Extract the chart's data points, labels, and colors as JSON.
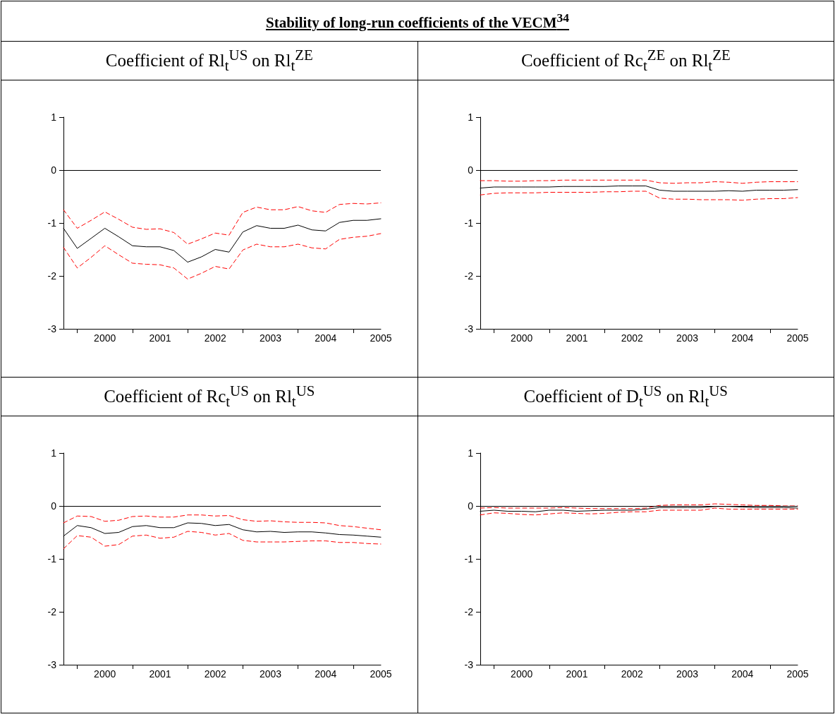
{
  "chart_data": [
    {
      "type": "line",
      "title": "Coefficient of Rl$_{t}$$^{US}$ on Rl$_{t}$$^{ZE}$",
      "annotations": [
        "Stability of long-run coefficients of the VECM$^{34}$"
      ],
      "x": [
        1999.75,
        2000,
        2000.25,
        2000.5,
        2000.75,
        2001,
        2001.25,
        2001.5,
        2001.75,
        2002,
        2002.25,
        2002.5,
        2002.75,
        2003,
        2003.25,
        2003.5,
        2003.75,
        2004,
        2004.25,
        2004.5,
        2004.75,
        2005,
        2005.25,
        2005.5
      ],
      "xlim": [
        1999.75,
        2005.5
      ],
      "xticks": [
        {
          "value": 2000,
          "label": null
        },
        {
          "value": 2000.5,
          "label": "2000"
        },
        {
          "value": 2001,
          "label": null
        },
        {
          "value": 2001.5,
          "label": "2001"
        },
        {
          "value": 2002,
          "label": null
        },
        {
          "value": 2002.5,
          "label": "2002"
        },
        {
          "value": 2003,
          "label": null
        },
        {
          "value": 2003.5,
          "label": "2003"
        },
        {
          "value": 2004,
          "label": null
        },
        {
          "value": 2004.5,
          "label": "2004"
        },
        {
          "value": 2005,
          "label": null
        },
        {
          "value": 2005.5,
          "label": "2005"
        }
      ],
      "ylim": [
        -3,
        1
      ],
      "yticks": [
        -3,
        -2,
        -1,
        0,
        1
      ],
      "marker": "none",
      "ref_lines": [
        {
          "axis": "y",
          "value": 0,
          "color": "#000000"
        }
      ],
      "series": [
        {
          "color": "#000000",
          "line_style": "solid",
          "values": [
            -1.1,
            -1.48,
            -1.29,
            -1.1,
            -1.26,
            -1.43,
            -1.45,
            -1.45,
            -1.52,
            -1.74,
            -1.64,
            -1.5,
            -1.55,
            -1.17,
            -1.05,
            -1.1,
            -1.1,
            -1.04,
            -1.13,
            -1.15,
            -0.99,
            -0.95,
            -0.95,
            -0.92
          ]
        },
        {
          "color": "#ff0000",
          "line_style": "dashed",
          "values": [
            -0.75,
            -1.1,
            -0.95,
            -0.79,
            -0.93,
            -1.08,
            -1.12,
            -1.11,
            -1.18,
            -1.4,
            -1.3,
            -1.19,
            -1.23,
            -0.8,
            -0.7,
            -0.75,
            -0.75,
            -0.69,
            -0.77,
            -0.8,
            -0.65,
            -0.63,
            -0.64,
            -0.62
          ]
        },
        {
          "color": "#ff0000",
          "line_style": "dashed",
          "values": [
            -1.46,
            -1.85,
            -1.65,
            -1.43,
            -1.6,
            -1.76,
            -1.78,
            -1.79,
            -1.85,
            -2.06,
            -1.95,
            -1.82,
            -1.87,
            -1.51,
            -1.4,
            -1.45,
            -1.45,
            -1.4,
            -1.47,
            -1.49,
            -1.31,
            -1.27,
            -1.25,
            -1.2
          ]
        }
      ]
    },
    {
      "type": "line",
      "title": "Coefficient of Rc$_{t}$$^{ZE}$ on Rl$_{t}$$^{ZE}$",
      "x": [
        1999.75,
        2000,
        2000.25,
        2000.5,
        2000.75,
        2001,
        2001.25,
        2001.5,
        2001.75,
        2002,
        2002.25,
        2002.5,
        2002.75,
        2003,
        2003.25,
        2003.5,
        2003.75,
        2004,
        2004.25,
        2004.5,
        2004.75,
        2005,
        2005.25,
        2005.5
      ],
      "xlim": [
        1999.75,
        2005.5
      ],
      "xticks": [
        {
          "value": 2000,
          "label": null
        },
        {
          "value": 2000.5,
          "label": "2000"
        },
        {
          "value": 2001,
          "label": null
        },
        {
          "value": 2001.5,
          "label": "2001"
        },
        {
          "value": 2002,
          "label": null
        },
        {
          "value": 2002.5,
          "label": "2002"
        },
        {
          "value": 2003,
          "label": null
        },
        {
          "value": 2003.5,
          "label": "2003"
        },
        {
          "value": 2004,
          "label": null
        },
        {
          "value": 2004.5,
          "label": "2004"
        },
        {
          "value": 2005,
          "label": null
        },
        {
          "value": 2005.5,
          "label": "2005"
        }
      ],
      "ylim": [
        -3,
        1
      ],
      "yticks": [
        -3,
        -2,
        -1,
        0,
        1
      ],
      "marker": "none",
      "ref_lines": [
        {
          "axis": "y",
          "value": 0,
          "color": "#000000"
        }
      ],
      "series": [
        {
          "color": "#000000",
          "line_style": "solid",
          "values": [
            -0.34,
            -0.32,
            -0.32,
            -0.32,
            -0.32,
            -0.32,
            -0.31,
            -0.31,
            -0.31,
            -0.31,
            -0.3,
            -0.3,
            -0.3,
            -0.38,
            -0.4,
            -0.4,
            -0.4,
            -0.4,
            -0.39,
            -0.4,
            -0.38,
            -0.38,
            -0.38,
            -0.37
          ]
        },
        {
          "color": "#ff0000",
          "line_style": "dashed",
          "values": [
            -0.2,
            -0.2,
            -0.21,
            -0.21,
            -0.2,
            -0.2,
            -0.19,
            -0.19,
            -0.19,
            -0.19,
            -0.19,
            -0.19,
            -0.19,
            -0.24,
            -0.25,
            -0.24,
            -0.24,
            -0.22,
            -0.23,
            -0.25,
            -0.23,
            -0.22,
            -0.22,
            -0.22
          ]
        },
        {
          "color": "#ff0000",
          "line_style": "dashed",
          "values": [
            -0.47,
            -0.44,
            -0.43,
            -0.43,
            -0.43,
            -0.42,
            -0.42,
            -0.42,
            -0.42,
            -0.41,
            -0.41,
            -0.4,
            -0.4,
            -0.53,
            -0.55,
            -0.55,
            -0.56,
            -0.56,
            -0.56,
            -0.57,
            -0.55,
            -0.54,
            -0.54,
            -0.52
          ]
        }
      ]
    },
    {
      "type": "line",
      "title": "Coefficient of Rc$_{t}$$^{US}$ on Rl$_{t}$$^{US}$",
      "x": [
        1999.75,
        2000,
        2000.25,
        2000.5,
        2000.75,
        2001,
        2001.25,
        2001.5,
        2001.75,
        2002,
        2002.25,
        2002.5,
        2002.75,
        2003,
        2003.25,
        2003.5,
        2003.75,
        2004,
        2004.25,
        2004.5,
        2004.75,
        2005,
        2005.25,
        2005.5
      ],
      "xlim": [
        1999.75,
        2005.5
      ],
      "xticks": [
        {
          "value": 2000,
          "label": null
        },
        {
          "value": 2000.5,
          "label": "2000"
        },
        {
          "value": 2001,
          "label": null
        },
        {
          "value": 2001.5,
          "label": "2001"
        },
        {
          "value": 2002,
          "label": null
        },
        {
          "value": 2002.5,
          "label": "2002"
        },
        {
          "value": 2003,
          "label": null
        },
        {
          "value": 2003.5,
          "label": "2003"
        },
        {
          "value": 2004,
          "label": null
        },
        {
          "value": 2004.5,
          "label": "2004"
        },
        {
          "value": 2005,
          "label": null
        },
        {
          "value": 2005.5,
          "label": "2005"
        }
      ],
      "ylim": [
        -3,
        1
      ],
      "yticks": [
        -3,
        -2,
        -1,
        0,
        1
      ],
      "marker": "none",
      "ref_lines": [
        {
          "axis": "y",
          "value": 0,
          "color": "#000000"
        }
      ],
      "series": [
        {
          "color": "#000000",
          "line_style": "solid",
          "values": [
            -0.57,
            -0.37,
            -0.41,
            -0.52,
            -0.5,
            -0.39,
            -0.37,
            -0.41,
            -0.41,
            -0.32,
            -0.33,
            -0.37,
            -0.35,
            -0.45,
            -0.49,
            -0.48,
            -0.5,
            -0.49,
            -0.49,
            -0.51,
            -0.54,
            -0.55,
            -0.57,
            -0.59
          ]
        },
        {
          "color": "#ff0000",
          "line_style": "dashed",
          "values": [
            -0.32,
            -0.19,
            -0.2,
            -0.29,
            -0.27,
            -0.2,
            -0.19,
            -0.21,
            -0.21,
            -0.17,
            -0.17,
            -0.19,
            -0.18,
            -0.26,
            -0.29,
            -0.28,
            -0.3,
            -0.31,
            -0.31,
            -0.32,
            -0.37,
            -0.39,
            -0.42,
            -0.45
          ]
        },
        {
          "color": "#ff0000",
          "line_style": "dashed",
          "values": [
            -0.81,
            -0.56,
            -0.59,
            -0.76,
            -0.73,
            -0.57,
            -0.55,
            -0.61,
            -0.59,
            -0.48,
            -0.5,
            -0.55,
            -0.52,
            -0.65,
            -0.68,
            -0.68,
            -0.68,
            -0.67,
            -0.66,
            -0.66,
            -0.69,
            -0.69,
            -0.71,
            -0.72
          ]
        }
      ]
    },
    {
      "type": "line",
      "title": "Coefficient of D$_{t}$$^{US}$ on Rl$_{t}$$^{US}$",
      "x": [
        1999.75,
        2000,
        2000.25,
        2000.5,
        2000.75,
        2001,
        2001.25,
        2001.5,
        2001.75,
        2002,
        2002.25,
        2002.5,
        2002.75,
        2003,
        2003.25,
        2003.5,
        2003.75,
        2004,
        2004.25,
        2004.5,
        2004.75,
        2005,
        2005.25,
        2005.5
      ],
      "xlim": [
        1999.75,
        2005.5
      ],
      "xticks": [
        {
          "value": 2000,
          "label": null
        },
        {
          "value": 2000.5,
          "label": "2000"
        },
        {
          "value": 2001,
          "label": null
        },
        {
          "value": 2001.5,
          "label": "2001"
        },
        {
          "value": 2002,
          "label": null
        },
        {
          "value": 2002.5,
          "label": "2002"
        },
        {
          "value": 2003,
          "label": null
        },
        {
          "value": 2003.5,
          "label": "2003"
        },
        {
          "value": 2004,
          "label": null
        },
        {
          "value": 2004.5,
          "label": "2004"
        },
        {
          "value": 2005,
          "label": null
        },
        {
          "value": 2005.5,
          "label": "2005"
        }
      ],
      "ylim": [
        -3,
        1
      ],
      "yticks": [
        -3,
        -2,
        -1,
        0,
        1
      ],
      "marker": "none",
      "ref_lines": [
        {
          "axis": "y",
          "value": 0,
          "color": "#000000"
        }
      ],
      "series": [
        {
          "color": "#000000",
          "line_style": "solid",
          "values": [
            -0.1,
            -0.08,
            -0.1,
            -0.1,
            -0.11,
            -0.08,
            -0.08,
            -0.1,
            -0.09,
            -0.08,
            -0.08,
            -0.08,
            -0.06,
            -0.03,
            -0.03,
            -0.03,
            -0.03,
            -0.01,
            -0.01,
            -0.02,
            -0.03,
            -0.03,
            -0.03,
            -0.04
          ]
        },
        {
          "color": "#ff0000",
          "line_style": "dashed",
          "values": [
            -0.04,
            -0.03,
            -0.04,
            -0.04,
            -0.04,
            -0.04,
            -0.03,
            -0.04,
            -0.05,
            -0.05,
            -0.05,
            -0.05,
            -0.04,
            0.01,
            0.02,
            0.02,
            0.02,
            0.04,
            0.03,
            0.02,
            0.01,
            0.01,
            0.0,
            0.0
          ]
        },
        {
          "color": "#ff0000",
          "line_style": "dashed",
          "values": [
            -0.17,
            -0.13,
            -0.14,
            -0.16,
            -0.17,
            -0.15,
            -0.13,
            -0.14,
            -0.15,
            -0.14,
            -0.12,
            -0.11,
            -0.11,
            -0.08,
            -0.08,
            -0.08,
            -0.08,
            -0.04,
            -0.06,
            -0.06,
            -0.06,
            -0.06,
            -0.06,
            -0.06
          ]
        }
      ]
    }
  ]
}
